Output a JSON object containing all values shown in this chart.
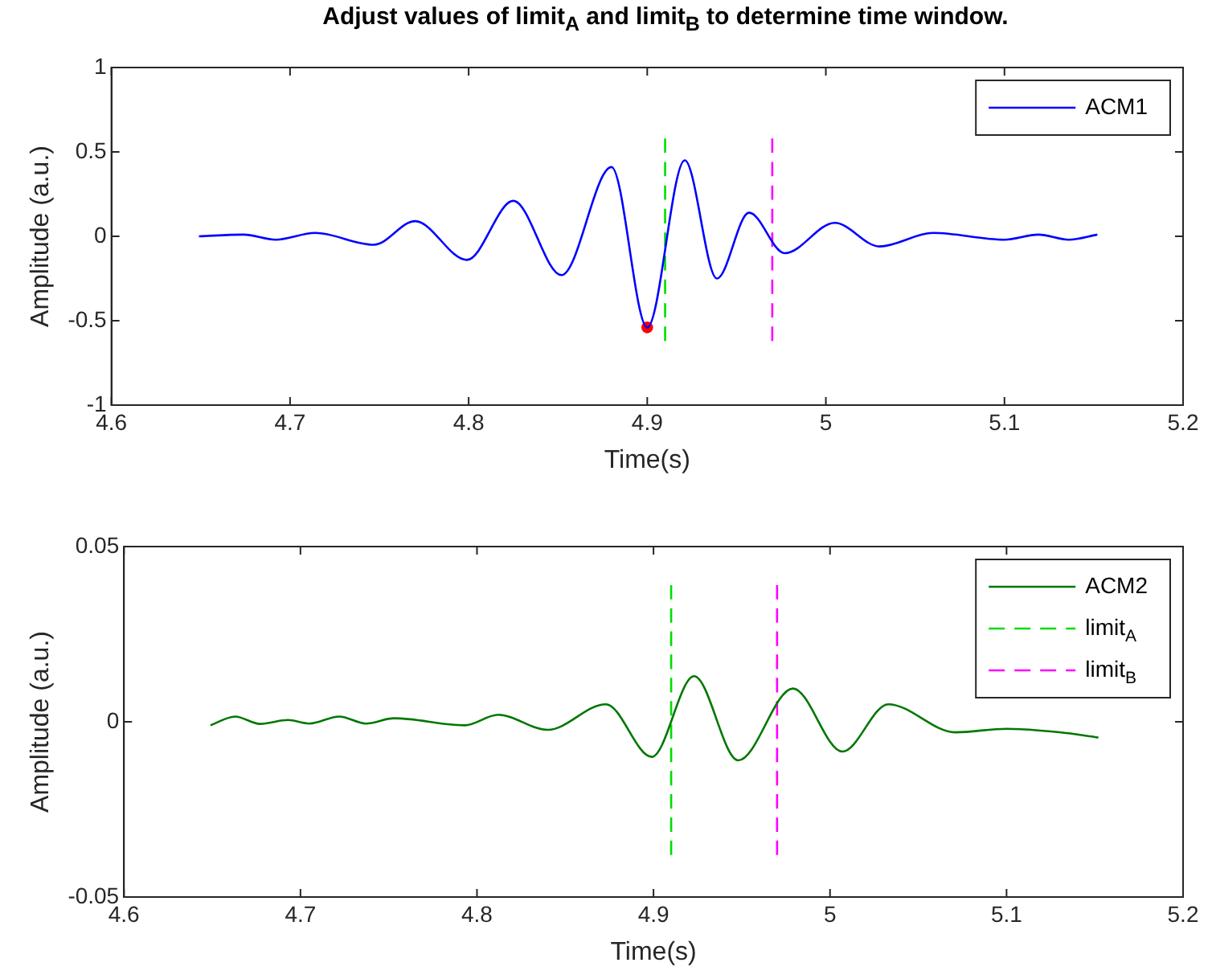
{
  "chart_data": [
    {
      "type": "line",
      "title": "Adjust values of limit$_{A}$ and limit$_{B}$ to determine time window.",
      "xlabel": "Time(s)",
      "ylabel": "Amplitude (a.u.)",
      "xlim": [
        4.6,
        5.2
      ],
      "xticks": [
        4.6,
        4.7,
        4.8,
        4.9,
        5,
        5.1,
        5.2
      ],
      "ylim": [
        -1,
        1
      ],
      "yticks": [
        -1,
        -0.5,
        0,
        0.5,
        1
      ],
      "legend": "top right",
      "grid": false,
      "series": [
        {
          "name": "ACM1",
          "color": "#0000ff",
          "x": [
            4.649,
            4.674,
            4.692,
            4.714,
            4.747,
            4.77,
            4.799,
            4.825,
            4.852,
            4.88,
            4.9,
            4.921,
            4.939,
            4.957,
            4.977,
            5.005,
            5.03,
            5.06,
            5.1,
            5.119,
            5.136,
            5.152
          ],
          "values": [
            0,
            0.01,
            -0.02,
            0.02,
            -0.05,
            0.09,
            -0.14,
            0.21,
            -0.23,
            0.41,
            -0.54,
            0.45,
            -0.25,
            0.14,
            -0.1,
            0.08,
            -0.06,
            0.02,
            -0.02,
            0.01,
            -0.02,
            0.01
          ]
        },
        {
          "color": "#00dd00",
          "line_style": "dashed",
          "x": [
            4.91,
            4.91
          ],
          "values": [
            0.58,
            -0.62
          ]
        },
        {
          "color": "#ff00ff",
          "line_style": "dashed",
          "x": [
            4.97,
            4.97
          ],
          "values": [
            0.58,
            -0.62
          ]
        },
        {
          "type": "scatter",
          "color": "#ff0000",
          "marker": "circle",
          "x": [
            4.9
          ],
          "values": [
            -0.54
          ]
        }
      ]
    },
    {
      "type": "line",
      "xlabel": "Time(s)",
      "ylabel": "Amplitude (a.u.)",
      "xlim": [
        4.6,
        5.2
      ],
      "xticks": [
        4.6,
        4.7,
        4.8,
        4.9,
        5,
        5.1,
        5.2
      ],
      "ylim": [
        -0.05,
        0.05
      ],
      "yticks": [
        -0.05,
        0,
        0.05
      ],
      "legend": "top right",
      "grid": false,
      "series": [
        {
          "name": "ACM2",
          "color": "#007700",
          "x": [
            4.649,
            4.663,
            4.677,
            4.693,
            4.705,
            4.722,
            4.737,
            4.753,
            4.793,
            4.812,
            4.84,
            4.873,
            4.899,
            4.923,
            4.948,
            4.979,
            5.007,
            5.033,
            5.071,
            5.1,
            5.13,
            5.152
          ],
          "values": [
            -0.001,
            0.0015,
            -0.0006,
            0.0005,
            -0.0005,
            0.0015,
            -0.0005,
            0.001,
            -0.001,
            0.002,
            -0.0023,
            0.005,
            -0.01,
            0.013,
            -0.011,
            0.0095,
            -0.0085,
            0.005,
            -0.003,
            -0.002,
            -0.003,
            -0.0045
          ]
        },
        {
          "name": "limit$_{A}$",
          "color": "#00dd00",
          "line_style": "dashed",
          "x": [
            4.91,
            4.91
          ],
          "values": [
            0.039,
            -0.038
          ]
        },
        {
          "name": "limit$_{B}$",
          "color": "#ff00ff",
          "line_style": "dashed",
          "x": [
            4.97,
            4.97
          ],
          "values": [
            0.039,
            -0.038
          ]
        }
      ]
    }
  ]
}
